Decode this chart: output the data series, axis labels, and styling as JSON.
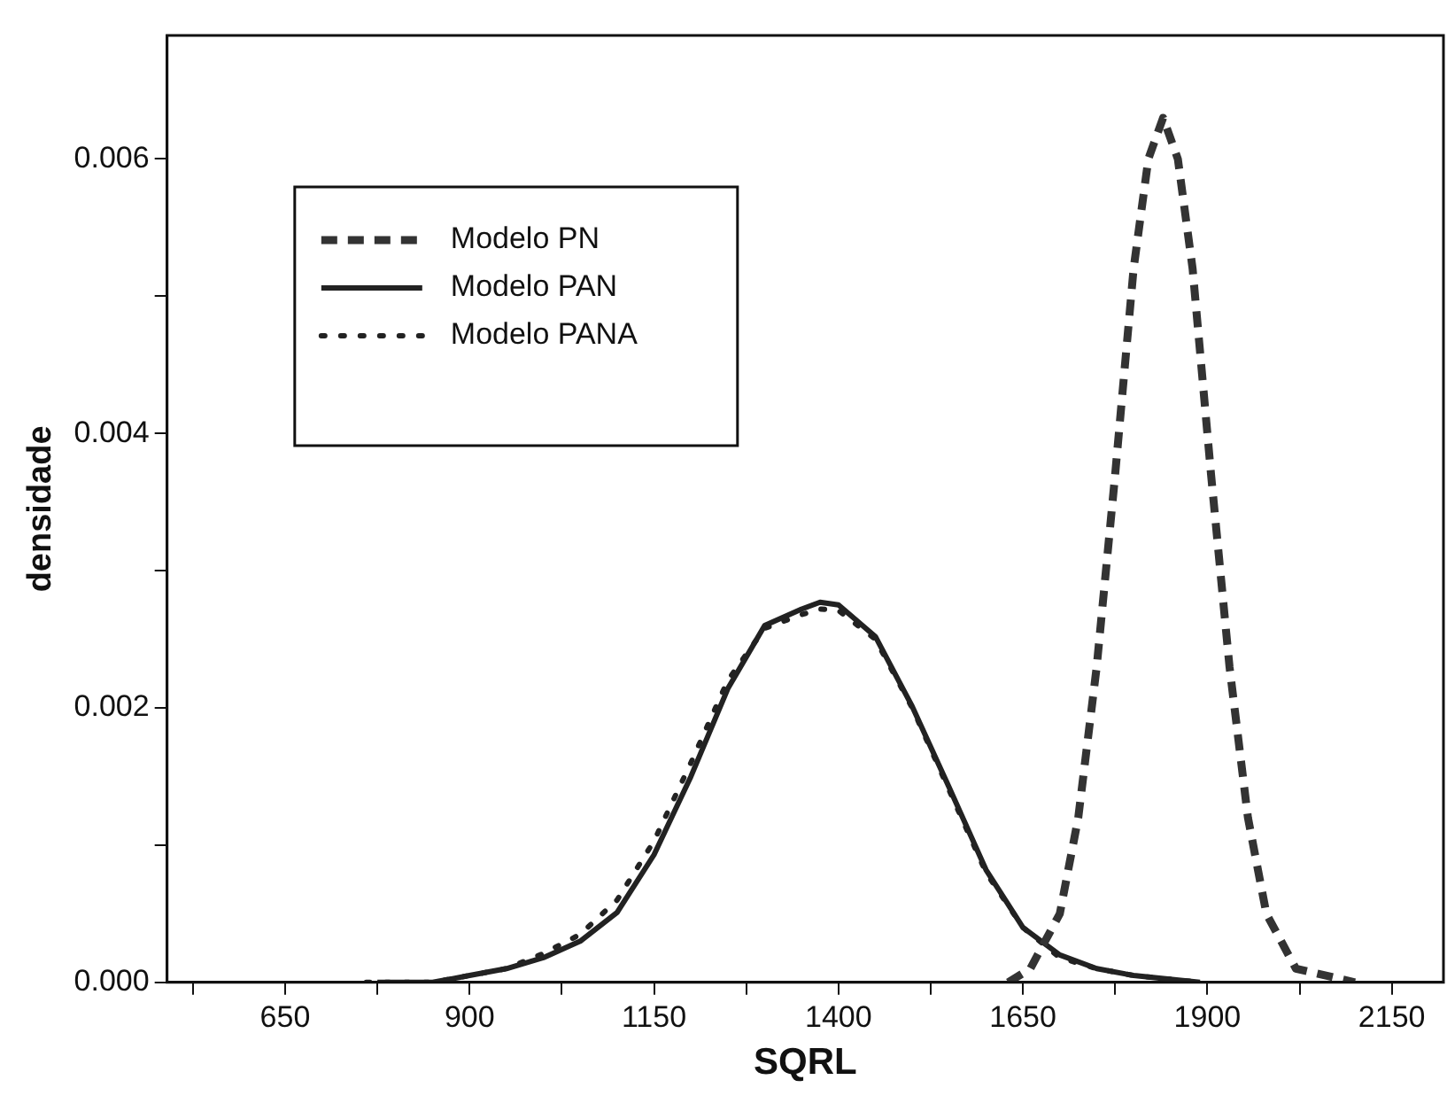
{
  "chart_data": {
    "type": "line",
    "xlabel": "SQRL",
    "ylabel": "densidade",
    "xlim": [
      490,
      2220
    ],
    "xticks": [
      {
        "value": 525,
        "label": null
      },
      650,
      {
        "value": 775,
        "label": null
      },
      900,
      {
        "value": 1025,
        "label": null
      },
      1150,
      {
        "value": 1275,
        "label": null
      },
      1400,
      {
        "value": 1525,
        "label": null
      },
      1650,
      {
        "value": 1775,
        "label": null
      },
      1900,
      {
        "value": 2025,
        "label": null
      },
      2150
    ],
    "ylim": [
      0,
      0.0069
    ],
    "yticks": [
      {
        "value": 0,
        "label": "0.000"
      },
      {
        "value": 0.001,
        "label": null
      },
      {
        "value": 0.002,
        "label": "0.002"
      },
      {
        "value": 0.003,
        "label": null
      },
      {
        "value": 0.004,
        "label": "0.004"
      },
      {
        "value": 0.005,
        "label": null
      },
      {
        "value": 0.006,
        "label": "0.006"
      }
    ],
    "grid": false,
    "legend": "top left",
    "marker": "none",
    "series": [
      {
        "name": "Modelo PN",
        "color": "#333333",
        "line_style": "dashed",
        "x": [
          1630,
          1660,
          1700,
          1725,
          1750,
          1775,
          1800,
          1820,
          1840,
          1860,
          1880,
          1905,
          1930,
          1955,
          1980,
          2020,
          2100
        ],
        "values": [
          0,
          0.0001,
          0.0005,
          0.0012,
          0.0023,
          0.0037,
          0.0052,
          0.006,
          0.0063,
          0.006,
          0.0052,
          0.0037,
          0.0023,
          0.0012,
          0.0005,
          0.0001,
          0
        ]
      },
      {
        "name": "Modelo PAN",
        "color": "#222222",
        "line_style": "solid",
        "x": [
          775,
          850,
          900,
          950,
          1000,
          1050,
          1100,
          1150,
          1200,
          1250,
          1300,
          1350,
          1375,
          1400,
          1450,
          1500,
          1550,
          1600,
          1650,
          1700,
          1750,
          1800,
          1890
        ],
        "values": [
          0,
          0,
          5e-05,
          0.0001,
          0.00018,
          0.0003,
          0.00051,
          0.00093,
          0.0015,
          0.00214,
          0.0026,
          0.00272,
          0.00277,
          0.00275,
          0.00252,
          0.00201,
          0.00142,
          0.00082,
          0.0004,
          0.0002,
          0.0001,
          5e-05,
          0
        ]
      },
      {
        "name": "Modelo PANA",
        "color": "#222222",
        "line_style": "dotted",
        "x": [
          760,
          850,
          900,
          950,
          1000,
          1050,
          1100,
          1150,
          1200,
          1250,
          1300,
          1350,
          1375,
          1400,
          1450,
          1500,
          1550,
          1600,
          1650,
          1700,
          1750,
          1800,
          1890
        ],
        "values": [
          0,
          0,
          5e-05,
          0.0001,
          0.00021,
          0.00035,
          0.0006,
          0.00103,
          0.0016,
          0.0022,
          0.00258,
          0.00268,
          0.00272,
          0.00271,
          0.0025,
          0.002,
          0.0014,
          0.0008,
          0.0004,
          0.00018,
          0.0001,
          5e-05,
          0
        ]
      }
    ]
  }
}
